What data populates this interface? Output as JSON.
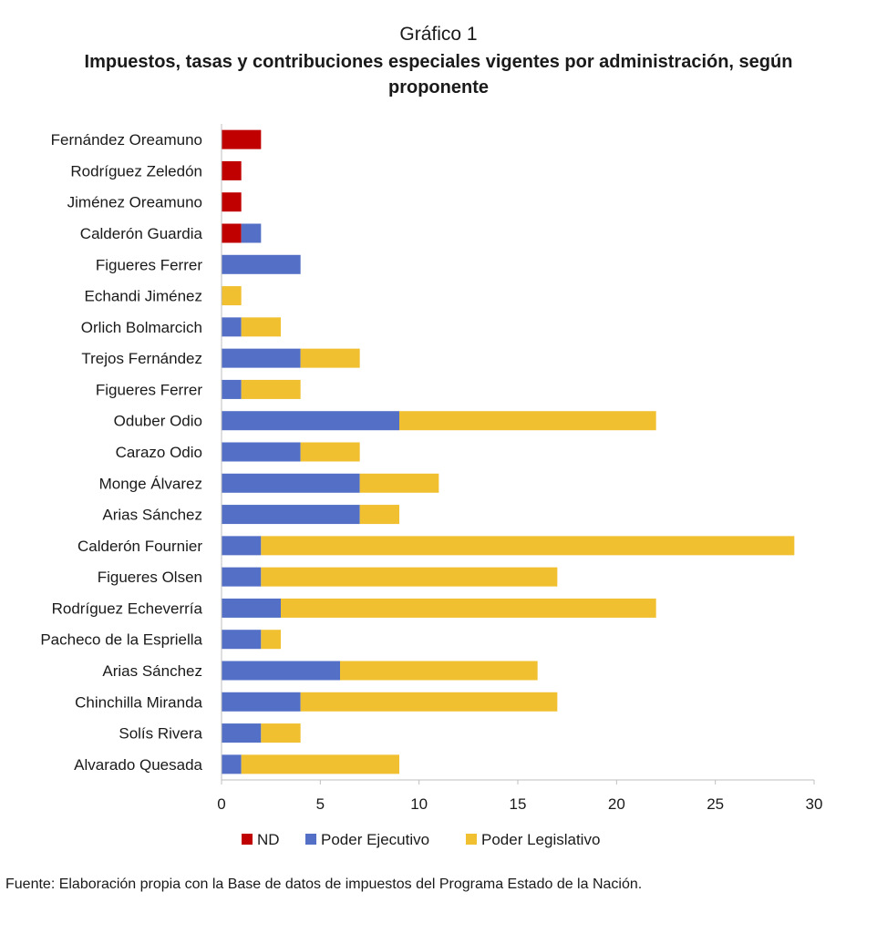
{
  "figure": {
    "label": "Gráfico 1",
    "title": "Impuestos, tasas y contribuciones especiales vigentes por administración, según proponente",
    "source": "Fuente: Elaboración propia con la Base de datos de impuestos del Programa Estado de la Nación."
  },
  "chart_data": {
    "type": "bar",
    "orientation": "horizontal",
    "stacked": true,
    "title": "Impuestos, tasas y contribuciones especiales vigentes por administración, según proponente",
    "categories": [
      "Fernández Oreamuno",
      "Rodríguez Zeledón",
      "Jiménez Oreamuno",
      "Calderón Guardia",
      "Figueres Ferrer",
      "Echandi Jiménez",
      "Orlich Bolmarcich",
      "Trejos Fernández",
      "Figueres Ferrer",
      "Oduber Odio",
      "Carazo Odio",
      "Monge Álvarez",
      "Arias Sánchez",
      "Calderón Fournier",
      "Figueres Olsen",
      "Rodríguez Echeverría",
      "Pacheco de la Espriella",
      "Arias Sánchez",
      "Chinchilla Miranda",
      "Solís Rivera",
      "Alvarado Quesada"
    ],
    "series": [
      {
        "name": "ND",
        "color": "#c00000",
        "values": [
          2,
          1,
          1,
          1,
          0,
          0,
          0,
          0,
          0,
          0,
          0,
          0,
          0,
          0,
          0,
          0,
          0,
          0,
          0,
          0,
          0
        ]
      },
      {
        "name": "Poder Ejecutivo",
        "color": "#5470c6",
        "values": [
          0,
          0,
          0,
          1,
          4,
          0,
          1,
          4,
          1,
          9,
          4,
          7,
          7,
          2,
          2,
          3,
          2,
          6,
          4,
          2,
          1
        ]
      },
      {
        "name": "Poder Legislativo",
        "color": "#f0c030",
        "values": [
          0,
          0,
          0,
          0,
          0,
          1,
          2,
          3,
          3,
          13,
          3,
          4,
          2,
          27,
          15,
          19,
          1,
          10,
          13,
          2,
          8
        ]
      }
    ],
    "xlim": [
      0,
      30
    ],
    "xticks": [
      0,
      5,
      10,
      15,
      20,
      25,
      30
    ],
    "grid": false,
    "legend": "bottom"
  }
}
